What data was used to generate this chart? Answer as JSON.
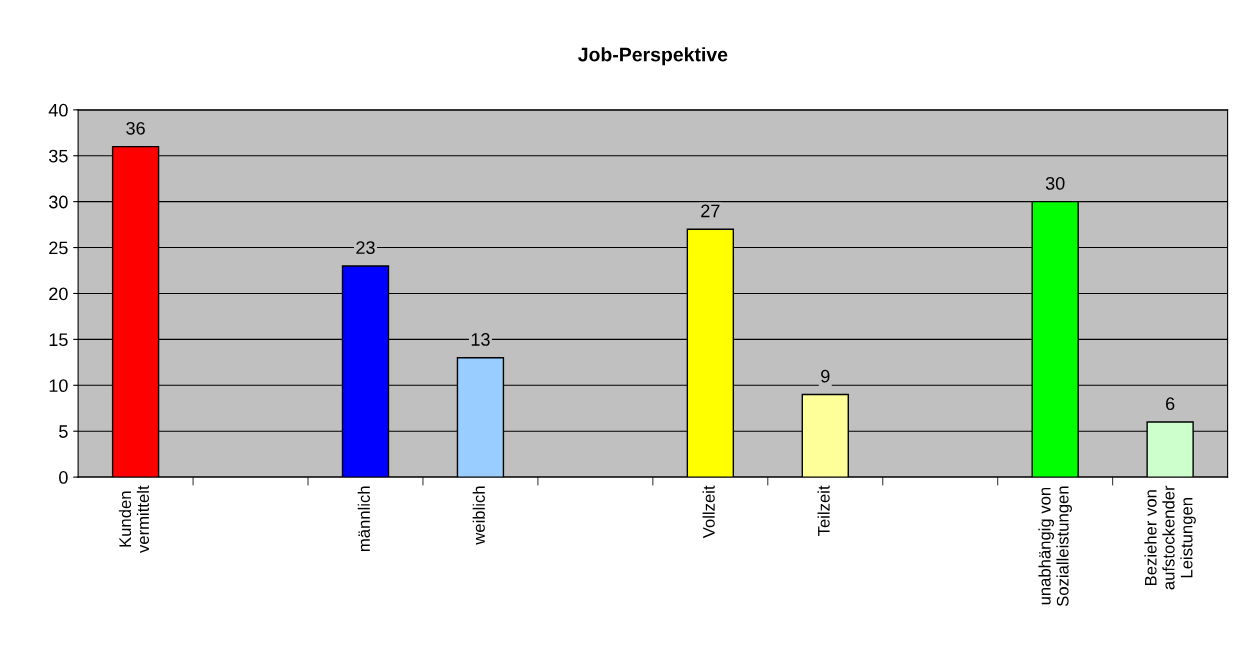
{
  "chart_data": {
    "type": "bar",
    "title": "Job-Perspektive",
    "categories": [
      "Kunden\nvermittelt",
      null,
      "männlich",
      "weiblich",
      null,
      "Vollzeit",
      "Teilzeit",
      null,
      "unabhängig von\nSozialleistungen",
      "Bezieher von\naufstockender\nLeistungen"
    ],
    "values": [
      36,
      null,
      23,
      13,
      null,
      27,
      9,
      null,
      30,
      6
    ],
    "colors": [
      "#ff0000",
      "#ffffff",
      "#0000ff",
      "#99ccff",
      "#ffffff",
      "#ffff00",
      "#ffff99",
      "#ffffff",
      "#00ff00",
      "#ccffcc"
    ],
    "ylim": [
      0,
      40
    ],
    "yticks": [
      0,
      5,
      10,
      15,
      20,
      25,
      30,
      35,
      40
    ],
    "grid": "y",
    "data_labels": true
  }
}
